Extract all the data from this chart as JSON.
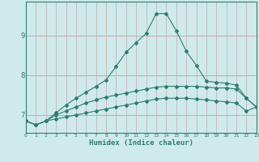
{
  "xlabel": "Humidex (Indice chaleur)",
  "x": [
    0,
    1,
    2,
    3,
    4,
    5,
    6,
    7,
    8,
    9,
    10,
    11,
    12,
    13,
    14,
    15,
    16,
    17,
    18,
    19,
    20,
    21,
    22,
    23
  ],
  "line1": [
    6.85,
    6.75,
    6.85,
    7.05,
    7.25,
    7.42,
    7.57,
    7.72,
    7.88,
    8.22,
    8.58,
    8.82,
    9.05,
    9.55,
    9.55,
    9.12,
    8.6,
    8.25,
    7.85,
    7.82,
    7.8,
    7.75,
    7.42,
    7.2
  ],
  "line2": [
    6.85,
    6.75,
    6.85,
    7.0,
    7.1,
    7.2,
    7.3,
    7.38,
    7.45,
    7.5,
    7.55,
    7.6,
    7.65,
    7.7,
    7.72,
    7.72,
    7.72,
    7.72,
    7.7,
    7.68,
    7.68,
    7.65,
    7.42,
    7.2
  ],
  "line3": [
    6.85,
    6.75,
    6.85,
    6.9,
    6.95,
    7.0,
    7.05,
    7.1,
    7.15,
    7.2,
    7.25,
    7.3,
    7.35,
    7.4,
    7.42,
    7.42,
    7.42,
    7.4,
    7.38,
    7.35,
    7.33,
    7.3,
    7.1,
    7.2
  ],
  "line_color": "#2e7d6e",
  "bg_color": "#ceeaea",
  "grid_color": "#c8a8a8",
  "ylim": [
    6.55,
    9.85
  ],
  "yticks": [
    7,
    8,
    9
  ],
  "xlim": [
    0,
    23
  ]
}
